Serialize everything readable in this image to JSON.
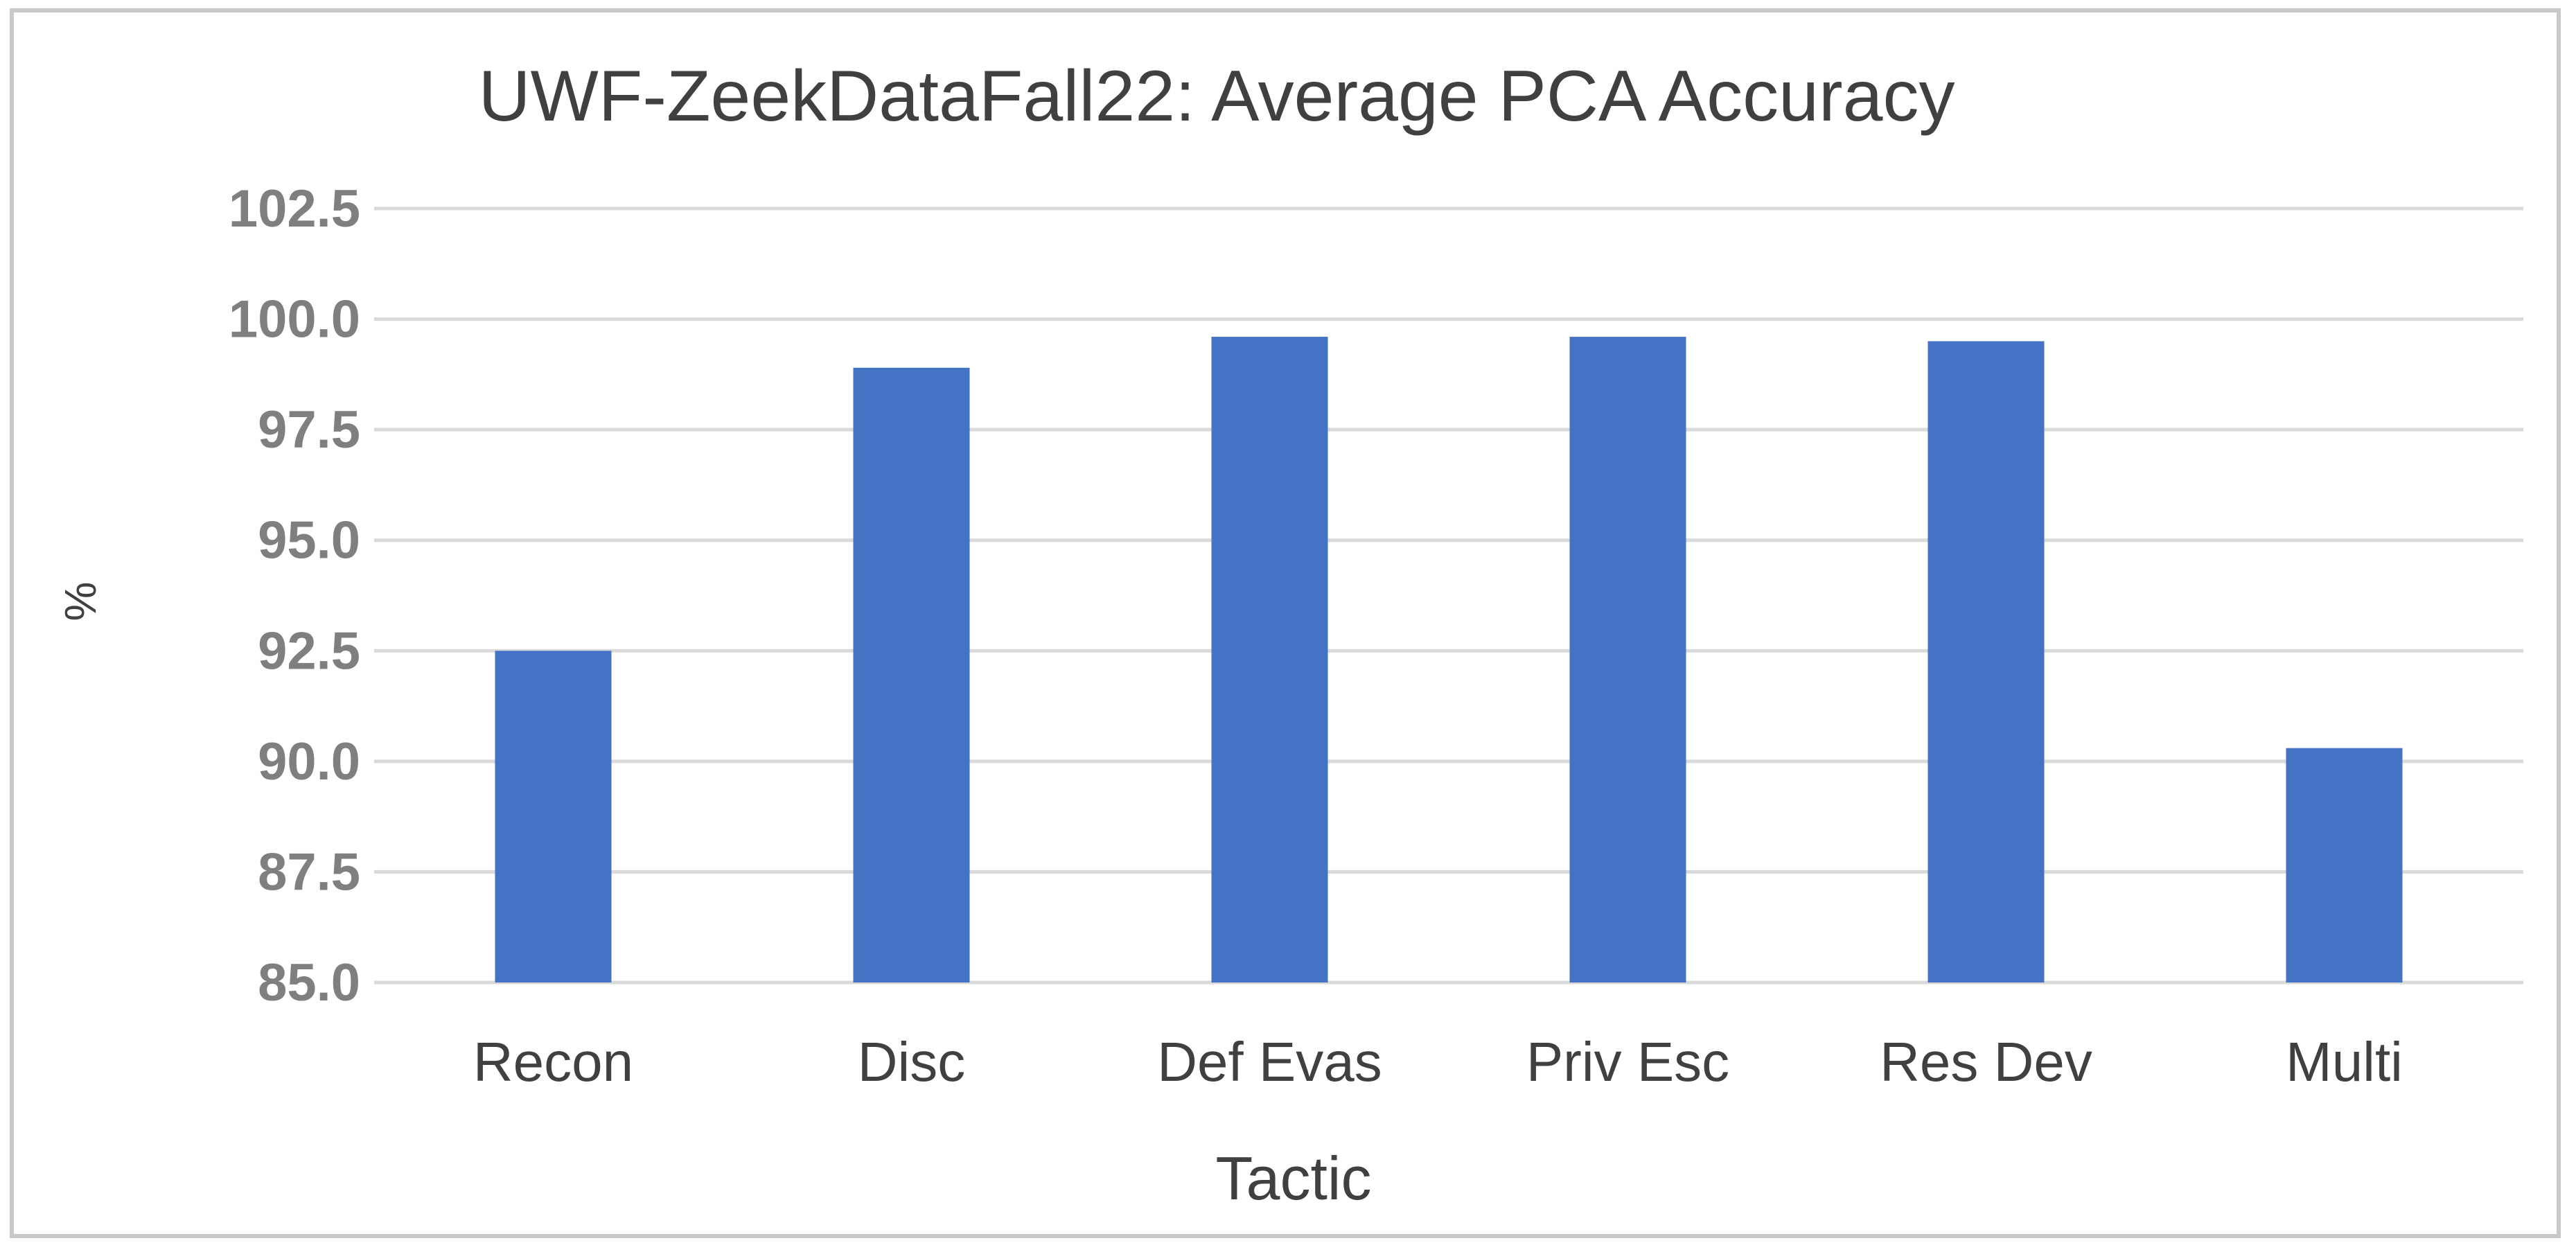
{
  "chart_data": {
    "type": "bar",
    "title": "UWF-ZeekDataFall22: Average PCA Accuracy",
    "xlabel": "Tactic",
    "ylabel": "%",
    "categories": [
      "Recon",
      "Disc",
      "Def Evas",
      "Priv Esc",
      "Res Dev",
      "Multi"
    ],
    "values": [
      92.5,
      98.9,
      99.6,
      99.6,
      99.5,
      90.3
    ],
    "ylim": [
      85.0,
      102.5
    ],
    "yticks": [
      "85.0",
      "87.5",
      "90.0",
      "92.5",
      "95.0",
      "97.5",
      "100.0",
      "102.5"
    ],
    "grid": true,
    "legend": "none",
    "bar_color": "#4472c4"
  }
}
